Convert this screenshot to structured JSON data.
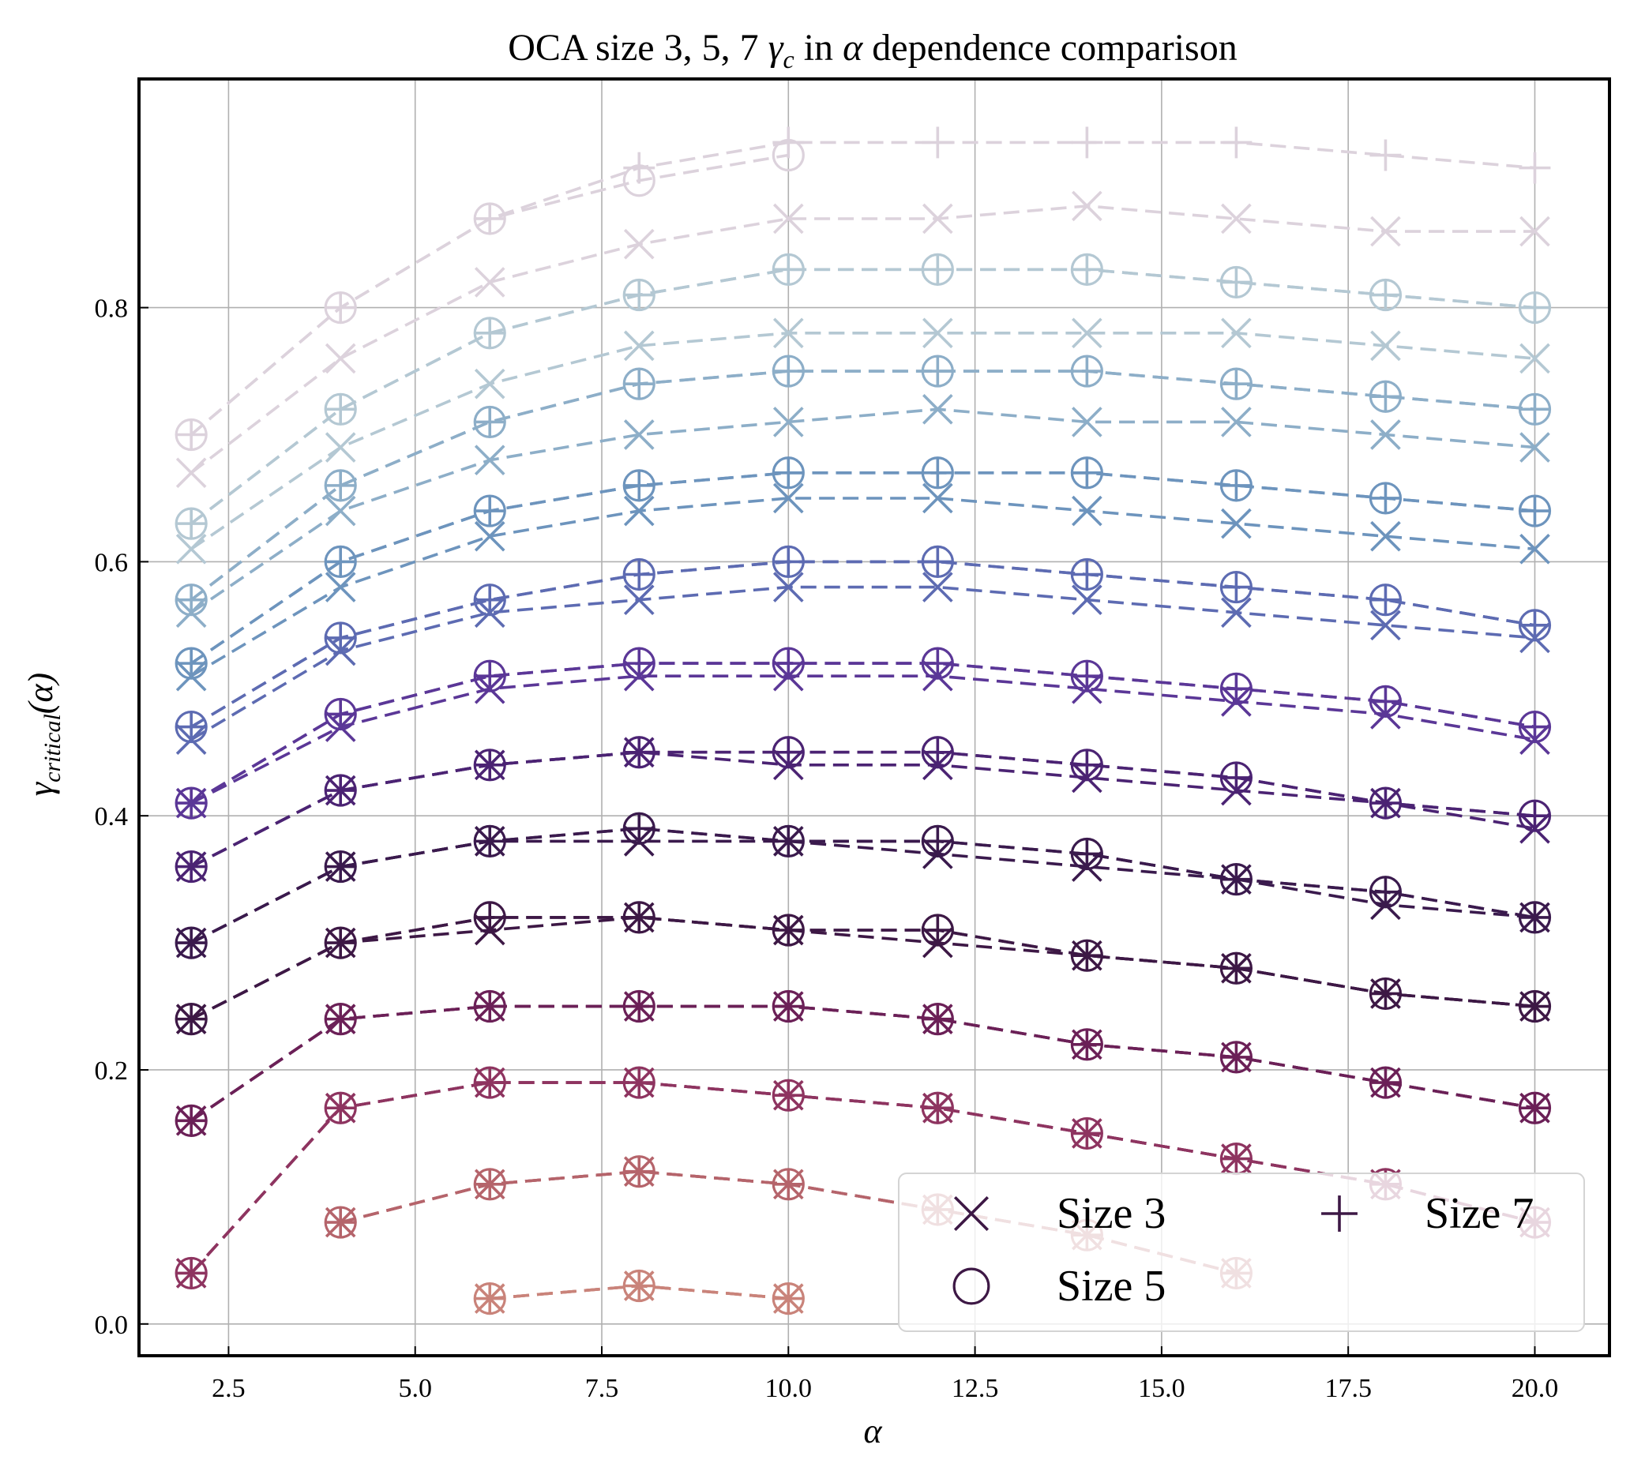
{
  "chart_data": {
    "type": "line",
    "title": {
      "prefix": "OCA size 3, 5, 7 ",
      "gamma": "γ",
      "sub": "c",
      "mid": " in ",
      "alpha": "α",
      "suffix": " dependence comparison"
    },
    "xlabel": "α",
    "ylabel": {
      "gamma": "γ",
      "sub": "critical",
      "arg": "(α)"
    },
    "xlim": [
      1.3,
      21.0
    ],
    "ylim": [
      -0.025,
      0.98
    ],
    "x_ticks": [
      "2.5",
      "5.0",
      "7.5",
      "10.0",
      "12.5",
      "15.0",
      "17.5",
      "20.0"
    ],
    "y_ticks": [
      "0.0",
      "0.2",
      "0.4",
      "0.6",
      "0.8"
    ],
    "grid": true,
    "legend": {
      "placement": "lower right",
      "entries": [
        {
          "label": "Size 3",
          "marker": "x"
        },
        {
          "label": "Size 5",
          "marker": "circle"
        },
        {
          "label": "Size 7",
          "marker": "plus"
        }
      ]
    },
    "x": [
      2,
      4,
      6,
      8,
      10,
      12,
      14,
      16,
      18,
      20
    ],
    "series": [
      {
        "color": "#c9837a",
        "size3": [
          null,
          null,
          0.02,
          0.03,
          0.02,
          null,
          null,
          null,
          null,
          null
        ],
        "size5": [
          null,
          null,
          0.02,
          0.03,
          0.02,
          null,
          null,
          null,
          null,
          null
        ],
        "size7": [
          null,
          null,
          0.02,
          0.03,
          0.02,
          null,
          null,
          null,
          null,
          null
        ]
      },
      {
        "color": "#b5646b",
        "size3": [
          null,
          0.08,
          0.11,
          0.12,
          0.11,
          0.09,
          0.07,
          0.04,
          null,
          null
        ],
        "size5": [
          null,
          0.08,
          0.11,
          0.12,
          0.11,
          0.09,
          0.07,
          0.04,
          null,
          null
        ],
        "size7": [
          null,
          0.08,
          0.11,
          0.12,
          0.11,
          0.09,
          0.07,
          0.04,
          null,
          null
        ]
      },
      {
        "color": "#8e3460",
        "size3": [
          0.04,
          0.17,
          0.19,
          0.19,
          0.18,
          0.17,
          0.15,
          0.13,
          0.11,
          0.08
        ],
        "size5": [
          0.04,
          0.17,
          0.19,
          0.19,
          0.18,
          0.17,
          0.15,
          0.13,
          0.11,
          0.08
        ],
        "size7": [
          0.04,
          0.17,
          0.19,
          0.19,
          0.18,
          0.17,
          0.15,
          0.13,
          0.11,
          0.08
        ]
      },
      {
        "color": "#6b2057",
        "size3": [
          0.16,
          0.24,
          0.25,
          0.25,
          0.25,
          0.24,
          0.22,
          0.21,
          0.19,
          0.17
        ],
        "size5": [
          0.16,
          0.24,
          0.25,
          0.25,
          0.25,
          0.24,
          0.22,
          0.21,
          0.19,
          0.17
        ],
        "size7": [
          0.16,
          0.24,
          0.25,
          0.25,
          0.25,
          0.24,
          0.22,
          0.21,
          0.19,
          0.17
        ]
      },
      {
        "color": "#3d1845",
        "size3": [
          0.24,
          0.3,
          0.31,
          0.32,
          0.31,
          0.3,
          0.29,
          0.28,
          0.26,
          0.25
        ],
        "size5": [
          0.24,
          0.3,
          0.32,
          0.32,
          0.31,
          0.31,
          0.29,
          0.28,
          0.26,
          0.25
        ],
        "size7": [
          0.24,
          0.3,
          0.32,
          0.32,
          0.31,
          0.31,
          0.29,
          0.28,
          0.26,
          0.25
        ]
      },
      {
        "color": "#3a1a4d",
        "size3": [
          0.3,
          0.36,
          0.38,
          0.38,
          0.38,
          0.37,
          0.36,
          0.35,
          0.33,
          0.32
        ],
        "size5": [
          0.3,
          0.36,
          0.38,
          0.39,
          0.38,
          0.38,
          0.37,
          0.35,
          0.34,
          0.32
        ],
        "size7": [
          0.3,
          0.36,
          0.38,
          0.39,
          0.38,
          0.38,
          0.37,
          0.35,
          0.34,
          0.32
        ]
      },
      {
        "color": "#4b2373",
        "size3": [
          0.36,
          0.42,
          0.44,
          0.45,
          0.44,
          0.44,
          0.43,
          0.42,
          0.41,
          0.39
        ],
        "size5": [
          0.36,
          0.42,
          0.44,
          0.45,
          0.45,
          0.45,
          0.44,
          0.43,
          0.41,
          0.4
        ],
        "size7": [
          0.36,
          0.42,
          0.44,
          0.45,
          0.45,
          0.45,
          0.44,
          0.43,
          0.41,
          0.4
        ]
      },
      {
        "color": "#5b3797",
        "size3": [
          0.41,
          0.47,
          0.5,
          0.51,
          0.51,
          0.51,
          0.5,
          0.49,
          0.48,
          0.46
        ],
        "size5": [
          0.41,
          0.48,
          0.51,
          0.52,
          0.52,
          0.52,
          0.51,
          0.5,
          0.49,
          0.47
        ],
        "size7": [
          0.41,
          0.48,
          0.51,
          0.52,
          0.52,
          0.52,
          0.51,
          0.5,
          0.49,
          0.47
        ]
      },
      {
        "color": "#5d6bb2",
        "size3": [
          0.46,
          0.53,
          0.56,
          0.57,
          0.58,
          0.58,
          0.57,
          0.56,
          0.55,
          0.54
        ],
        "size5": [
          0.47,
          0.54,
          0.57,
          0.59,
          0.6,
          0.6,
          0.59,
          0.58,
          0.57,
          0.55
        ],
        "size7": [
          0.47,
          0.54,
          0.57,
          0.59,
          0.6,
          0.6,
          0.59,
          0.58,
          0.57,
          0.55
        ]
      },
      {
        "color": "#6d94bd",
        "size3": [
          0.51,
          0.58,
          0.62,
          0.64,
          0.65,
          0.65,
          0.64,
          0.63,
          0.62,
          0.61
        ],
        "size5": [
          0.52,
          0.6,
          0.64,
          0.66,
          0.67,
          0.67,
          0.67,
          0.66,
          0.65,
          0.64
        ],
        "size7": [
          0.52,
          0.6,
          0.64,
          0.66,
          0.67,
          0.67,
          0.67,
          0.66,
          0.65,
          0.64
        ]
      },
      {
        "color": "#8daec8",
        "size3": [
          0.56,
          0.64,
          0.68,
          0.7,
          0.71,
          0.72,
          0.71,
          0.71,
          0.7,
          0.69
        ],
        "size5": [
          0.57,
          0.66,
          0.71,
          0.74,
          0.75,
          0.75,
          0.75,
          0.74,
          0.73,
          0.72
        ],
        "size7": [
          0.57,
          0.66,
          0.71,
          0.74,
          0.75,
          0.75,
          0.75,
          0.74,
          0.73,
          0.72
        ]
      },
      {
        "color": "#b4c8d3",
        "size3": [
          0.61,
          0.69,
          0.74,
          0.77,
          0.78,
          0.78,
          0.78,
          0.78,
          0.77,
          0.76
        ],
        "size5": [
          0.63,
          0.72,
          0.78,
          0.81,
          0.83,
          0.83,
          0.83,
          0.82,
          0.81,
          0.8
        ],
        "size7": [
          0.63,
          0.72,
          0.78,
          0.81,
          0.83,
          0.83,
          0.83,
          0.82,
          0.81,
          0.8
        ]
      },
      {
        "color": "#dcd2dc",
        "size3": [
          0.67,
          0.76,
          0.82,
          0.85,
          0.87,
          0.87,
          0.88,
          0.87,
          0.86,
          0.86
        ],
        "size5": [
          0.7,
          0.8,
          0.87,
          0.9,
          0.92,
          null,
          null,
          null,
          null,
          null
        ],
        "size7": [
          0.7,
          0.8,
          0.87,
          0.91,
          0.93,
          0.93,
          0.93,
          0.93,
          0.92,
          0.91
        ]
      }
    ]
  }
}
